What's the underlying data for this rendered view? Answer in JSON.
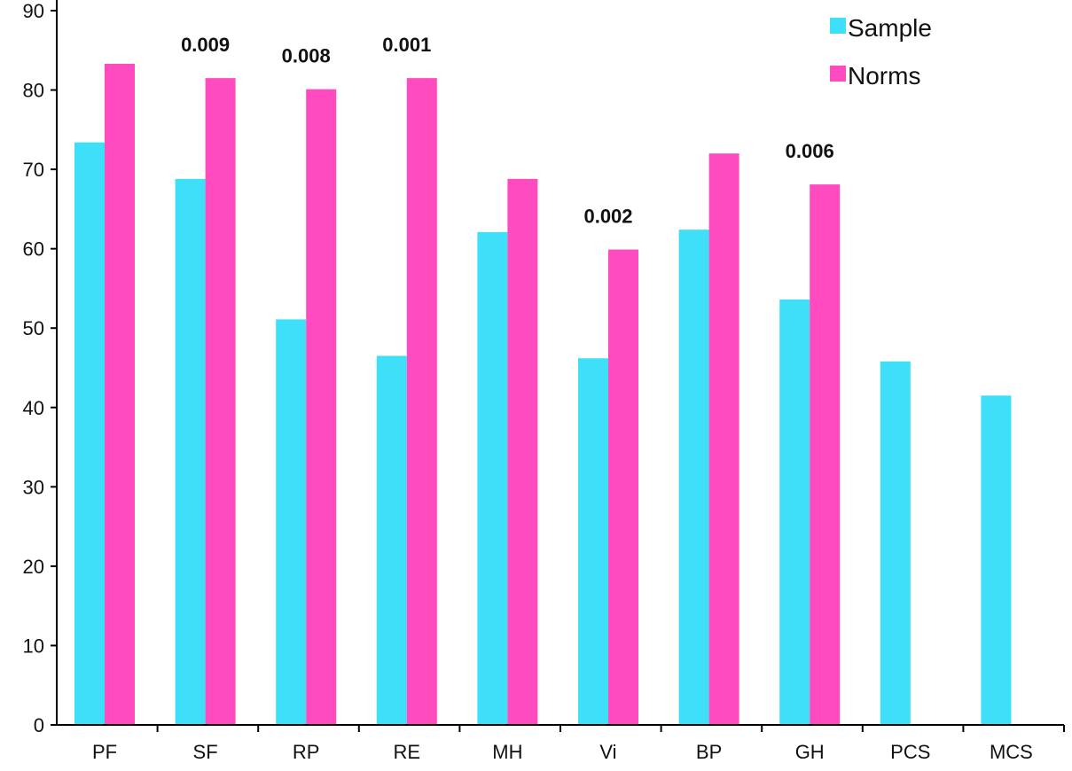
{
  "chart_data": {
    "type": "bar",
    "categories": [
      "PF",
      "SF",
      "RP",
      "RE",
      "MH",
      "Vi",
      "BP",
      "GH",
      "PCS",
      "MCS"
    ],
    "series": [
      {
        "name": "Sample",
        "color": "#3ddff9",
        "values": [
          73.4,
          68.8,
          51.1,
          46.5,
          62.1,
          46.2,
          62.4,
          53.6,
          45.8,
          41.5
        ]
      },
      {
        "name": "Norms",
        "color": "#ff4bbf",
        "values": [
          83.3,
          81.5,
          80.1,
          81.5,
          68.8,
          59.9,
          72.0,
          68.1,
          null,
          null
        ]
      }
    ],
    "y_ticks": [
      "0",
      "10",
      "20",
      "30",
      "40",
      "50",
      "60",
      "70",
      "80",
      "90"
    ],
    "ylim": [
      0,
      90
    ],
    "annotations": [
      {
        "category": "SF",
        "text": "0.009"
      },
      {
        "category": "RP",
        "text": "0.008"
      },
      {
        "category": "RE",
        "text": "0.001"
      },
      {
        "category": "Vi",
        "text": "0.002"
      },
      {
        "category": "GH",
        "text": "0.006"
      }
    ],
    "legend_position": "top-right",
    "grid": false
  }
}
